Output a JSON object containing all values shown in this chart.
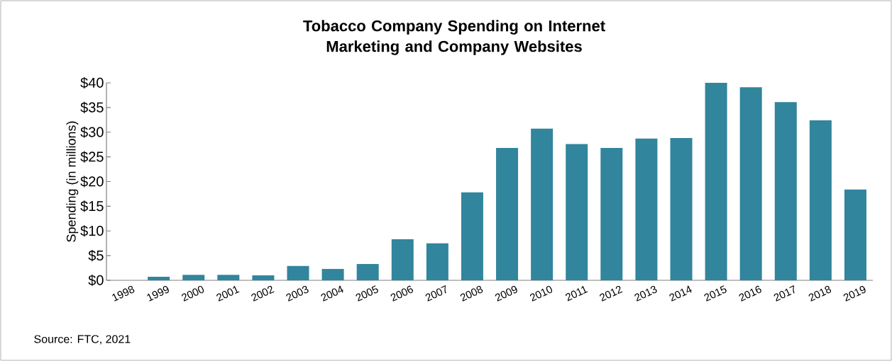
{
  "chart_data": {
    "type": "bar",
    "title": "Tobacco Company Spending on Internet Marketing and Company Websites",
    "ylabel": "Spending (in millions)",
    "categories": [
      "1998",
      "1999",
      "2000",
      "2001",
      "2002",
      "2003",
      "2004",
      "2005",
      "2006",
      "2007",
      "2008",
      "2009",
      "2010",
      "2011",
      "2012",
      "2013",
      "2014",
      "2015",
      "2016",
      "2017",
      "2018",
      "2019"
    ],
    "values": [
      0,
      0.7,
      1.1,
      1.1,
      1.0,
      2.9,
      2.3,
      3.3,
      8.3,
      7.5,
      17.8,
      26.8,
      30.7,
      27.6,
      26.8,
      28.7,
      28.8,
      40,
      39.1,
      36.1,
      32.4,
      18.4
    ],
    "color": "#31859c",
    "ylim": [
      0,
      40
    ],
    "yticks": [
      {
        "value": 0,
        "label": "$0"
      },
      {
        "value": 5,
        "label": "$5"
      },
      {
        "value": 10,
        "label": "$10"
      },
      {
        "value": 15,
        "label": "$15"
      },
      {
        "value": 20,
        "label": "$20"
      },
      {
        "value": 25,
        "label": "$25"
      },
      {
        "value": 30,
        "label": "$30"
      },
      {
        "value": 35,
        "label": "$35"
      },
      {
        "value": 40,
        "label": "$40"
      }
    ],
    "annotations": [
      "Source: FTC, 2021"
    ]
  }
}
